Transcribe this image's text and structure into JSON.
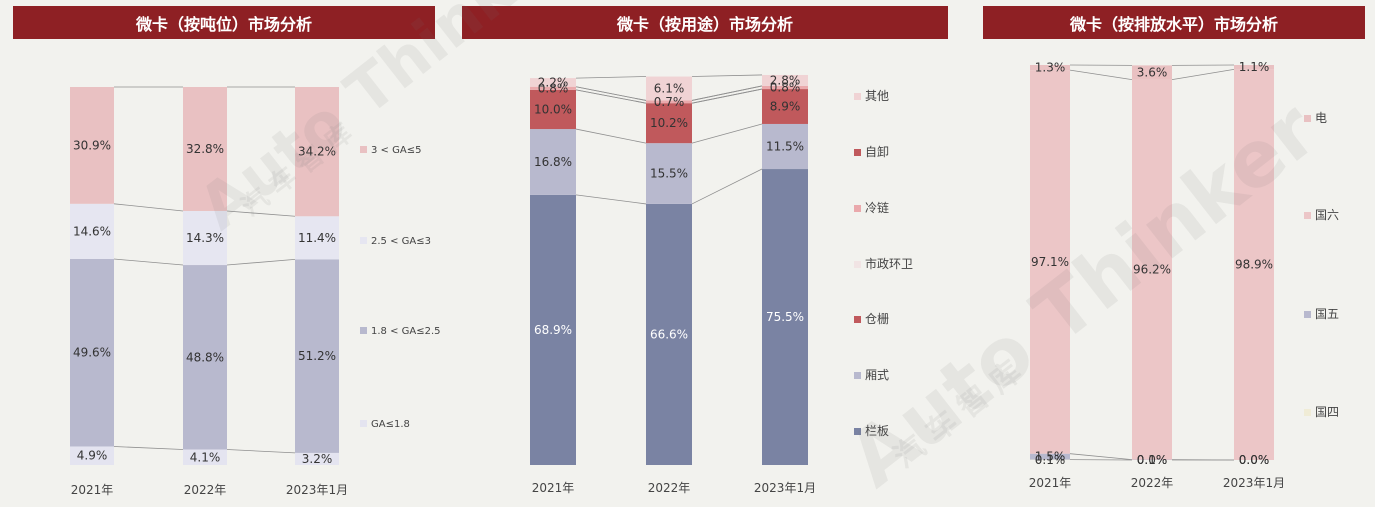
{
  "colors": {
    "banner": "#8e2024",
    "pink": "#e9c1c2",
    "lavender_light": "#e4e4f0",
    "lavender": "#b8b9ce",
    "pale": "#ecedf3",
    "slate": "#7a83a3",
    "red": "#c0595c",
    "light_pink": "#f0d3d4",
    "pinkish": "#ecd8d8",
    "cream": "#f0ecd6"
  },
  "chart_data": [
    {
      "type": "bar",
      "stacked": true,
      "title": "微卡（按吨位）市场分析",
      "categories": [
        "2021年",
        "2022年",
        "2023年1月"
      ],
      "series": [
        {
          "name": "GA≤1.8",
          "values": [
            4.9,
            4.1,
            3.2
          ],
          "labels": [
            "4.9%",
            "4.1%",
            "3.2%"
          ],
          "color": "#e4e4f0"
        },
        {
          "name": "1.8 < GA≤2.5",
          "values": [
            49.6,
            48.8,
            51.2
          ],
          "labels": [
            "49.6%",
            "48.8%",
            "51.2%"
          ],
          "color": "#b8b9ce"
        },
        {
          "name": "2.5 < GA≤3",
          "values": [
            14.6,
            14.3,
            11.4
          ],
          "labels": [
            "14.6%",
            "14.3%",
            "11.4%"
          ],
          "color": "#e6e6f1"
        },
        {
          "name": "3 < GA≤5",
          "values": [
            30.9,
            32.8,
            34.2
          ],
          "labels": [
            "30.9%",
            "32.8%",
            "34.2%"
          ],
          "color": "#e9c1c2"
        }
      ],
      "legend_order": [
        "3 < GA≤5",
        "2.5 < GA≤3",
        "1.8 < GA≤2.5",
        "GA≤1.8"
      ],
      "ylim": [
        0,
        100
      ],
      "legend": "right"
    },
    {
      "type": "bar",
      "stacked": true,
      "title": "微卡（按用途）市场分析",
      "categories": [
        "2021年",
        "2022年",
        "2023年1月"
      ],
      "series": [
        {
          "name": "栏板",
          "values": [
            68.9,
            66.6,
            75.5
          ],
          "labels": [
            "68.9%",
            "66.6%",
            "75.5%"
          ],
          "color": "#7a83a3"
        },
        {
          "name": "厢式",
          "values": [
            16.8,
            15.5,
            11.5
          ],
          "labels": [
            "16.8%",
            "15.5%",
            "11.5%"
          ],
          "color": "#b8b9ce"
        },
        {
          "name": "仓栅",
          "values": [
            10.0,
            10.2,
            8.9
          ],
          "labels": [
            "10.0%",
            "10.2%",
            "8.9%"
          ],
          "color": "#c0595c"
        },
        {
          "name": "市政环卫",
          "values": [
            0,
            0,
            0
          ],
          "labels": [
            "",
            "",
            ""
          ],
          "color": "#f1e4e4"
        },
        {
          "name": "冷链",
          "values": [
            0.8,
            0.7,
            0.8
          ],
          "labels": [
            "0.8%",
            "0.7%",
            "0.8%"
          ],
          "color": "#eaa9ac"
        },
        {
          "name": "自卸",
          "values": [
            0,
            0,
            0
          ],
          "labels": [
            "",
            "",
            ""
          ],
          "color": "#c0595c"
        },
        {
          "name": "其他",
          "values": [
            2.2,
            6.1,
            2.8
          ],
          "labels": [
            "2.2%",
            "6.1%",
            "2.8%"
          ],
          "color": "#f0d3d4"
        }
      ],
      "legend_order": [
        "其他",
        "自卸",
        "冷链",
        "市政环卫",
        "仓栅",
        "厢式",
        "栏板"
      ],
      "legend_colors": [
        "#f0d3d4",
        "#c0595c",
        "#eaa9ac",
        "#f1e4e4",
        "#c0595c",
        "#b8b9ce",
        "#7a83a3"
      ],
      "ylim": [
        0,
        100
      ],
      "legend": "right"
    },
    {
      "type": "bar",
      "stacked": true,
      "title": "微卡（按排放水平）市场分析",
      "categories": [
        "2021年",
        "2022年",
        "2023年1月"
      ],
      "series": [
        {
          "name": "国四",
          "values": [
            0.1,
            0.0,
            0.0
          ],
          "labels": [
            "0.1%",
            "0.0%",
            "0.0%"
          ],
          "color": "#f0ecd6"
        },
        {
          "name": "国五",
          "values": [
            1.5,
            0.1,
            0.0
          ],
          "labels": [
            "1.5%",
            "0.1%",
            "0.0%"
          ],
          "color": "#b8b9ce"
        },
        {
          "name": "国六",
          "values": [
            97.1,
            96.2,
            98.9
          ],
          "labels": [
            "97.1%",
            "96.2%",
            "98.9%"
          ],
          "color": "#ecc6c7"
        },
        {
          "name": "电",
          "values": [
            1.3,
            3.6,
            1.1
          ],
          "labels": [
            "1.3%",
            "3.6%",
            "1.1%"
          ],
          "color": "#e9c1c2"
        }
      ],
      "legend_order": [
        "电",
        "国六",
        "国五",
        "国四"
      ],
      "ylim": [
        0,
        100
      ],
      "legend": "right"
    }
  ],
  "watermark": {
    "brand": "Auto Thinker",
    "cn": "汽 车 智 库"
  }
}
